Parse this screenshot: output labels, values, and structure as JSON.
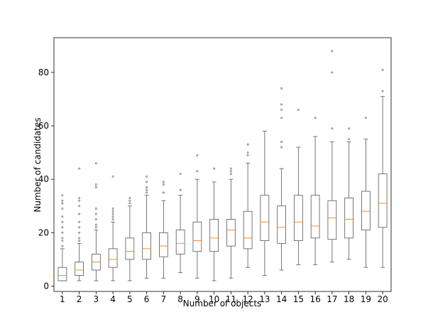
{
  "chart_data": {
    "type": "box",
    "xlabel": "Number of objects",
    "ylabel": "Number of candidates",
    "categories": [
      "1",
      "2",
      "3",
      "4",
      "5",
      "6",
      "7",
      "8",
      "9",
      "10",
      "11",
      "12",
      "13",
      "14",
      "15",
      "16",
      "17",
      "18",
      "19",
      "20"
    ],
    "ylim": [
      -2,
      93
    ],
    "yticks": [
      0,
      20,
      40,
      60,
      80
    ],
    "grid": false,
    "colors": {
      "box": "#555555",
      "median": "#ff7f0e",
      "flier": "#555555",
      "axis": "#000000"
    },
    "boxes": [
      {
        "whislo": 2,
        "q1": 2,
        "med": 4,
        "q3": 7,
        "whishi": 14,
        "fliers": [
          15,
          17,
          18,
          20,
          22,
          24,
          26,
          29,
          31,
          32,
          34
        ]
      },
      {
        "whislo": 2,
        "q1": 4,
        "med": 6,
        "q3": 9,
        "whishi": 16,
        "fliers": [
          17,
          18,
          20,
          22,
          24,
          27,
          30,
          32,
          33,
          44
        ]
      },
      {
        "whislo": 2,
        "q1": 6,
        "med": 9,
        "q3": 12,
        "whishi": 21,
        "fliers": [
          22,
          23,
          25,
          27,
          29,
          37,
          38,
          46
        ]
      },
      {
        "whislo": 2,
        "q1": 7,
        "med": 10,
        "q3": 14,
        "whishi": 24,
        "fliers": [
          25,
          26,
          27,
          28,
          29,
          41
        ]
      },
      {
        "whislo": 2,
        "q1": 10,
        "med": 13,
        "q3": 18,
        "whishi": 30,
        "fliers": [
          31,
          32,
          33
        ]
      },
      {
        "whislo": 3,
        "q1": 10,
        "med": 14,
        "q3": 20,
        "whishi": 34,
        "fliers": [
          35,
          36,
          37,
          39,
          41
        ]
      },
      {
        "whislo": 3,
        "q1": 11,
        "med": 15,
        "q3": 20,
        "whishi": 32,
        "fliers": [
          35,
          38,
          39
        ]
      },
      {
        "whislo": 5,
        "q1": 12,
        "med": 16,
        "q3": 21,
        "whishi": 34,
        "fliers": [
          36,
          42
        ]
      },
      {
        "whislo": 3,
        "q1": 13,
        "med": 17,
        "q3": 24,
        "whishi": 40,
        "fliers": [
          43,
          49
        ]
      },
      {
        "whislo": 2,
        "q1": 13,
        "med": 18,
        "q3": 25,
        "whishi": 39,
        "fliers": [
          44
        ]
      },
      {
        "whislo": 3,
        "q1": 15,
        "med": 21,
        "q3": 25,
        "whishi": 40,
        "fliers": [
          42,
          43,
          44
        ]
      },
      {
        "whislo": 7,
        "q1": 14,
        "med": 18,
        "q3": 28,
        "whishi": 46,
        "fliers": [
          49,
          50,
          53
        ]
      },
      {
        "whislo": 4,
        "q1": 17,
        "med": 24,
        "q3": 34,
        "whishi": 58,
        "fliers": []
      },
      {
        "whislo": 6,
        "q1": 16,
        "med": 22,
        "q3": 30,
        "whishi": 44,
        "fliers": [
          52,
          54,
          63,
          66,
          68,
          74
        ]
      },
      {
        "whislo": 8,
        "q1": 17,
        "med": 24,
        "q3": 34,
        "whishi": 52,
        "fliers": [
          66
        ]
      },
      {
        "whislo": 8,
        "q1": 18,
        "med": 22.5,
        "q3": 34,
        "whishi": 56,
        "fliers": [
          63
        ]
      },
      {
        "whislo": 9,
        "q1": 17.5,
        "med": 25.5,
        "q3": 32,
        "whishi": 54,
        "fliers": [
          59,
          80,
          88
        ]
      },
      {
        "whislo": 10,
        "q1": 18,
        "med": 25,
        "q3": 33,
        "whishi": 54,
        "fliers": [
          55,
          59
        ]
      },
      {
        "whislo": 7,
        "q1": 21,
        "med": 28,
        "q3": 35.5,
        "whishi": 55,
        "fliers": [
          63
        ]
      },
      {
        "whislo": 7,
        "q1": 22,
        "med": 31,
        "q3": 42,
        "whishi": 71,
        "fliers": [
          73,
          81
        ]
      }
    ]
  }
}
